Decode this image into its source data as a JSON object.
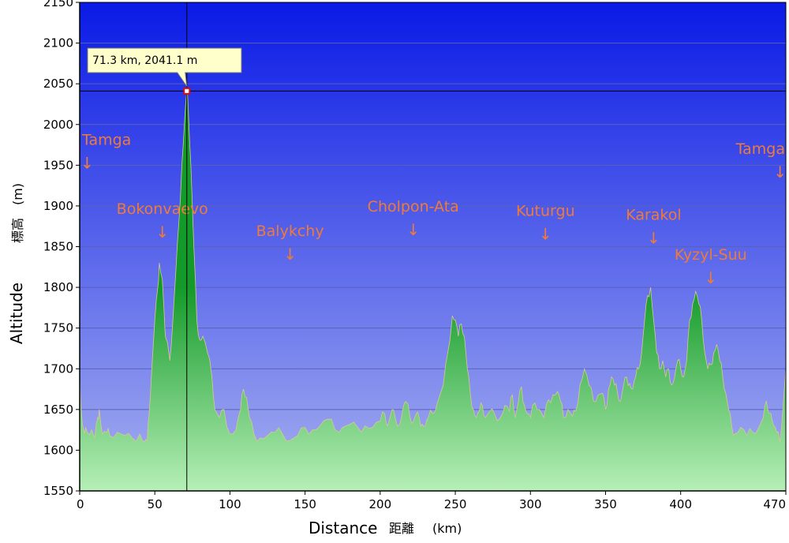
{
  "chart_data": {
    "type": "area",
    "xlabel": "Distance",
    "xlabel_cjk": "距離",
    "xunit": "(km)",
    "ylabel": "Altitude",
    "ylabel_cjk": "標高",
    "yunit": "(m)",
    "xlim": [
      0,
      470
    ],
    "ylim": [
      1550,
      2150
    ],
    "x_ticks": [
      "0",
      "50",
      "100",
      "150",
      "200",
      "250",
      "300",
      "350",
      "400",
      "470"
    ],
    "x_tick_values": [
      0,
      50,
      100,
      150,
      200,
      250,
      300,
      350,
      400,
      470
    ],
    "y_ticks": [
      "1550",
      "1600",
      "1650",
      "1700",
      "1750",
      "1800",
      "1850",
      "1900",
      "1950",
      "2000",
      "2050",
      "2100",
      "2150"
    ],
    "grid": true,
    "colors": {
      "sky_top": "#0a1ae6",
      "sky_bottom": "#a6b0f0",
      "fill_top": "#149a2a",
      "fill_bottom": "#b6efb6",
      "label": "#f07a38"
    },
    "profile": {
      "x": [
        0,
        1,
        2,
        3,
        5,
        8,
        10,
        12,
        13,
        15,
        18,
        20,
        25,
        30,
        35,
        40,
        43,
        45,
        46,
        48,
        50,
        52,
        53,
        55,
        57,
        60,
        62,
        64,
        66,
        68,
        70,
        71.3,
        72,
        74,
        76,
        78,
        80,
        82,
        85,
        88,
        90,
        93,
        96,
        100,
        104,
        107,
        109,
        111,
        113,
        116,
        120,
        125,
        130,
        135,
        140,
        145,
        150,
        155,
        160,
        165,
        170,
        175,
        180,
        185,
        190,
        195,
        200,
        203,
        205,
        208,
        210,
        213,
        215,
        217,
        220,
        222,
        224,
        226,
        228,
        230,
        232,
        235,
        238,
        242,
        245,
        248,
        250,
        252,
        254,
        256,
        258,
        260,
        262,
        264,
        266,
        268,
        270,
        273,
        276,
        280,
        283,
        286,
        288,
        290,
        292,
        294,
        296,
        298,
        300,
        303,
        306,
        309,
        312,
        315,
        318,
        320,
        322,
        325,
        328,
        330,
        333,
        336,
        339,
        342,
        345,
        348,
        350,
        352,
        354,
        356,
        358,
        360,
        362,
        364,
        366,
        368,
        370,
        372,
        374,
        376,
        378,
        380,
        382,
        384,
        386,
        388,
        390,
        392,
        394,
        396,
        398,
        400,
        402,
        404,
        406,
        408,
        410,
        412,
        414,
        416,
        418,
        420,
        422,
        424,
        426,
        428,
        430,
        432,
        434,
        436,
        440,
        444,
        448,
        452,
        455,
        457,
        460,
        462,
        464,
        466,
        468,
        470
      ],
      "y": [
        1690,
        1650,
        1630,
        1620,
        1622,
        1625,
        1615,
        1640,
        1650,
        1620,
        1622,
        1618,
        1622,
        1618,
        1615,
        1620,
        1610,
        1612,
        1640,
        1700,
        1760,
        1800,
        1830,
        1810,
        1740,
        1710,
        1760,
        1820,
        1880,
        1950,
        2010,
        2041,
        2030,
        1950,
        1850,
        1760,
        1735,
        1740,
        1720,
        1690,
        1650,
        1640,
        1650,
        1620,
        1625,
        1650,
        1675,
        1665,
        1640,
        1620,
        1615,
        1618,
        1622,
        1620,
        1612,
        1618,
        1628,
        1625,
        1630,
        1638,
        1625,
        1628,
        1632,
        1628,
        1630,
        1628,
        1636,
        1645,
        1630,
        1650,
        1640,
        1632,
        1650,
        1660,
        1640,
        1635,
        1645,
        1640,
        1632,
        1630,
        1640,
        1645,
        1658,
        1680,
        1720,
        1765,
        1760,
        1740,
        1755,
        1740,
        1700,
        1670,
        1650,
        1640,
        1648,
        1655,
        1640,
        1648,
        1645,
        1640,
        1655,
        1648,
        1668,
        1640,
        1660,
        1678,
        1655,
        1645,
        1640,
        1658,
        1650,
        1640,
        1662,
        1668,
        1672,
        1660,
        1640,
        1650,
        1642,
        1648,
        1680,
        1700,
        1680,
        1660,
        1668,
        1670,
        1650,
        1675,
        1690,
        1680,
        1670,
        1660,
        1680,
        1690,
        1682,
        1675,
        1690,
        1700,
        1720,
        1760,
        1790,
        1800,
        1760,
        1720,
        1700,
        1710,
        1690,
        1700,
        1680,
        1690,
        1710,
        1700,
        1690,
        1710,
        1760,
        1780,
        1795,
        1780,
        1760,
        1720,
        1700,
        1705,
        1720,
        1730,
        1710,
        1690,
        1670,
        1650,
        1630,
        1620,
        1628,
        1618,
        1622,
        1628,
        1640,
        1660,
        1645,
        1630,
        1622,
        1610,
        1650,
        1700
      ]
    },
    "marker": {
      "x": 71.3,
      "y": 2041.1,
      "label": "71.3 km, 2041.1 m"
    },
    "annotations": [
      {
        "label": "Tamga",
        "x": 0,
        "y": 1975,
        "anchor": "start"
      },
      {
        "label": "Bokonvaevo",
        "x": 55,
        "y": 1890,
        "anchor": "middle"
      },
      {
        "label": "Balykchy",
        "x": 140,
        "y": 1863,
        "anchor": "middle"
      },
      {
        "label": "Cholpon-Ata",
        "x": 222,
        "y": 1893,
        "anchor": "middle"
      },
      {
        "label": "Kuturgu",
        "x": 310,
        "y": 1888,
        "anchor": "middle"
      },
      {
        "label": "Karakol",
        "x": 382,
        "y": 1883,
        "anchor": "middle"
      },
      {
        "label": "Kyzyl-Suu",
        "x": 420,
        "y": 1834,
        "anchor": "middle"
      },
      {
        "label": "Tamga",
        "x": 470,
        "y": 1964,
        "anchor": "end"
      }
    ]
  }
}
